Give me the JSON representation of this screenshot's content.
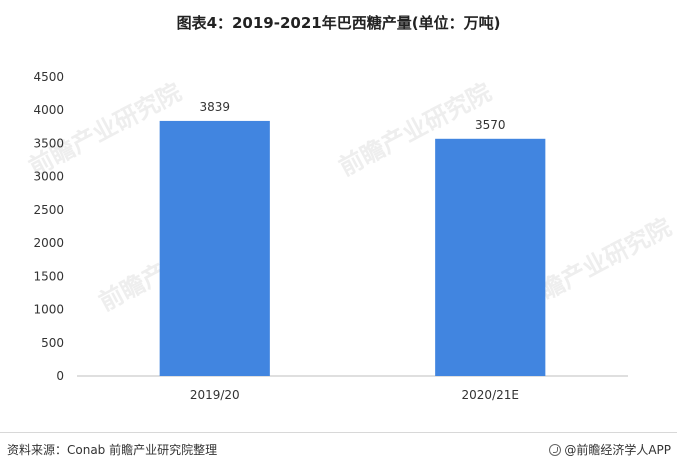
{
  "title": "图表4：2019-2021年巴西糖产量(单位：万吨)",
  "footer": {
    "source": "资料来源：Conab 前瞻产业研究院整理",
    "credit": "@前瞻经济学人APP"
  },
  "watermark": "前瞻产业研究院",
  "colors": {
    "bar": "#4185e0",
    "axis": "#bfbfbf",
    "text": "#333333"
  },
  "chart_data": {
    "type": "bar",
    "categories": [
      "2019/20",
      "2020/21E"
    ],
    "values": [
      3839,
      3570
    ],
    "ylim": [
      0,
      4500
    ],
    "yticks": [
      0,
      500,
      1000,
      1500,
      2000,
      2500,
      3000,
      3500,
      4000,
      4500
    ],
    "data_labels": true,
    "grid": false
  }
}
